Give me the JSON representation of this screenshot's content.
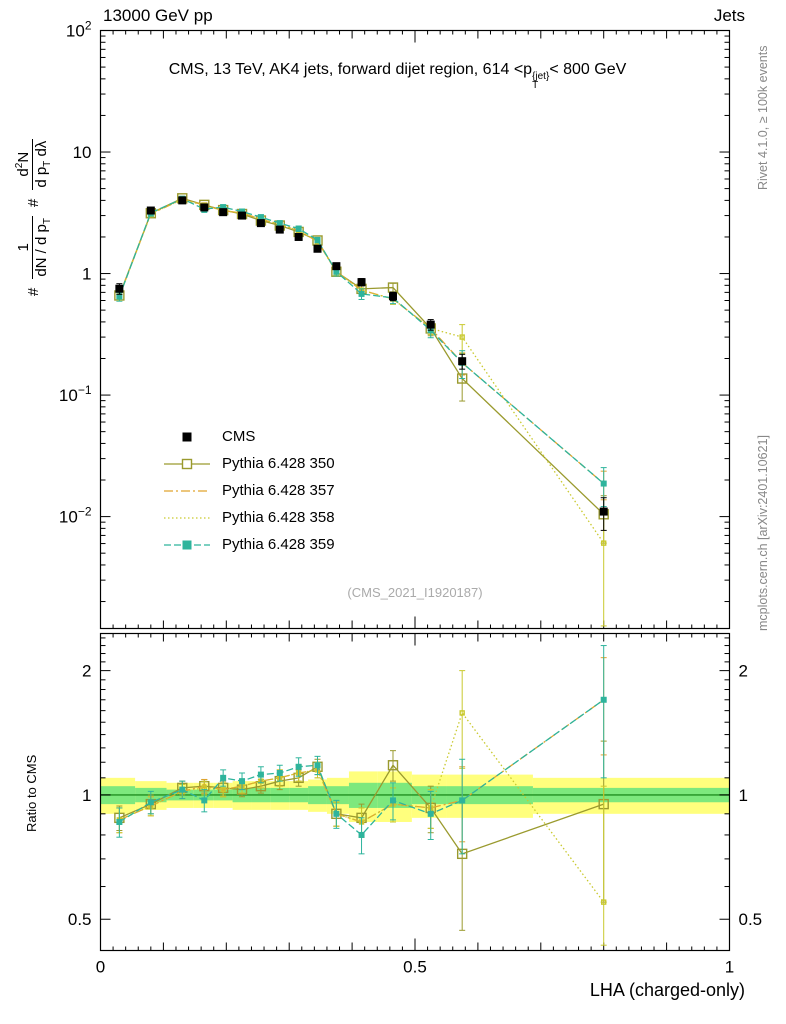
{
  "header": {
    "left": "13000 GeV pp",
    "right": "Jets"
  },
  "title": {
    "pre": "CMS, 13 TeV, AK4 jets, forward dijet region, 614 <p",
    "sup": "{jet}",
    "sub": "T",
    "post": "< 800 GeV"
  },
  "ylabel_main": {
    "hash1": "#",
    "f1_num": "1",
    "f1_den_pre": "dN / d p",
    "f1_den_sub": "T",
    "hash2": "#",
    "f2_num_pre": "d",
    "f2_num_sup": "2",
    "f2_num_post": "N",
    "f2_den_pre": "d p",
    "f2_den_sub": "T",
    "f2_den_post": " dλ"
  },
  "ratio": {
    "ylabel": "Ratio to CMS"
  },
  "watermark": "(CMS_2021_I1920187)",
  "right_margin": {
    "top": "Rivet 4.1.0, ≥ 100k events",
    "bottom": "mcplots.cern.ch [arXiv:2401.10621]"
  },
  "chart_data": {
    "type": "line",
    "title": "CMS, 13 TeV, AK4 jets, forward dijet region, 614 <pT{jet}< 800 GeV",
    "xlabel": "LHA (charged-only)",
    "ylabel": "1/(dN/dpT) d2N/(dpT dλ)",
    "xlim": [
      0,
      1
    ],
    "xticks": {
      "values": [
        0,
        0.5,
        1
      ],
      "labels": [
        "0",
        "0.5",
        "1"
      ]
    },
    "main_ylim_log": [
      0.0012,
      100
    ],
    "main_ytick_exponents": [
      2,
      1,
      0,
      -1,
      -2
    ],
    "ratio_ylim_log": [
      0.42,
      2.46
    ],
    "ratio_yticks": {
      "values": [
        0.5,
        1,
        2
      ],
      "labels": [
        "0.5",
        "1",
        "2"
      ]
    },
    "x": [
      0.03,
      0.08,
      0.13,
      0.165,
      0.195,
      0.225,
      0.255,
      0.285,
      0.315,
      0.345,
      0.375,
      0.415,
      0.465,
      0.525,
      0.575,
      0.8
    ],
    "cms": {
      "name": "CMS",
      "color": "#000000",
      "values": [
        0.75,
        3.3,
        4.0,
        3.5,
        3.2,
        3.0,
        2.6,
        2.3,
        2.0,
        1.6,
        1.15,
        0.85,
        0.65,
        0.38,
        0.19,
        0.011
      ],
      "err_rel": [
        0.1,
        0.05,
        0.04,
        0.04,
        0.04,
        0.04,
        0.04,
        0.04,
        0.05,
        0.05,
        0.06,
        0.07,
        0.08,
        0.1,
        0.14,
        0.3
      ]
    },
    "series": [
      {
        "name": "Pythia 6.428 350",
        "color": "#9a9a2e",
        "line": "solid",
        "marker": "open-square",
        "marker_size": 9,
        "legend_marker": "open-square",
        "ratio": [
          0.88,
          0.95,
          1.04,
          1.05,
          1.04,
          1.03,
          1.05,
          1.08,
          1.1,
          1.17,
          0.9,
          0.88,
          1.18,
          0.93,
          0.72,
          0.95
        ],
        "ratio_err": [
          0.06,
          0.05,
          0.04,
          0.04,
          0.04,
          0.04,
          0.04,
          0.05,
          0.05,
          0.05,
          0.06,
          0.07,
          0.1,
          0.12,
          0.25,
          0.4
        ]
      },
      {
        "name": "Pythia 6.428 357",
        "color": "#e0a32e",
        "line": "dashdot",
        "marker": "filled-square",
        "marker_size": 4,
        "legend_marker": "none",
        "ratio": [
          0.87,
          0.94,
          1.02,
          1.05,
          1.03,
          1.05,
          1.08,
          1.1,
          1.13,
          1.15,
          0.9,
          0.86,
          0.95,
          0.93,
          0.97,
          1.7
        ],
        "ratio_err": [
          0.06,
          0.05,
          0.04,
          0.04,
          0.04,
          0.04,
          0.04,
          0.05,
          0.05,
          0.05,
          0.06,
          0.07,
          0.09,
          0.1,
          0.2,
          0.45
        ]
      },
      {
        "name": "Pythia 6.428 358",
        "color": "#c9c92e",
        "line": "dotted",
        "marker": "open-square",
        "marker_size": 4,
        "legend_marker": "none",
        "ratio": [
          0.87,
          0.94,
          1.02,
          1.04,
          1.03,
          1.05,
          1.08,
          1.1,
          1.13,
          1.15,
          0.9,
          0.86,
          0.95,
          0.93,
          1.58,
          0.55
        ],
        "ratio_err": [
          0.06,
          0.05,
          0.04,
          0.04,
          0.04,
          0.04,
          0.04,
          0.05,
          0.05,
          0.05,
          0.06,
          0.07,
          0.09,
          0.1,
          0.42,
          0.5
        ]
      },
      {
        "name": "Pythia 6.428 359",
        "color": "#2eb49c",
        "line": "dashed",
        "marker": "filled-square",
        "marker_size": 6,
        "legend_marker": "filled-square",
        "ratio": [
          0.86,
          0.96,
          1.03,
          0.97,
          1.1,
          1.08,
          1.12,
          1.13,
          1.17,
          1.18,
          0.9,
          0.8,
          0.97,
          0.9,
          0.97,
          1.7
        ],
        "ratio_err": [
          0.07,
          0.06,
          0.05,
          0.06,
          0.05,
          0.05,
          0.05,
          0.05,
          0.06,
          0.06,
          0.07,
          0.08,
          0.1,
          0.12,
          0.25,
          0.6
        ]
      }
    ],
    "bands": {
      "yellow": {
        "color": "#ffff7d",
        "lo": [
          0.9,
          0.92,
          0.93,
          0.93,
          0.93,
          0.92,
          0.92,
          0.92,
          0.92,
          0.91,
          0.9,
          0.86,
          0.86,
          0.88,
          0.88,
          0.9
        ],
        "hi": [
          1.1,
          1.08,
          1.07,
          1.07,
          1.07,
          1.08,
          1.08,
          1.08,
          1.08,
          1.09,
          1.1,
          1.14,
          1.14,
          1.12,
          1.12,
          1.1
        ]
      },
      "green": {
        "color": "#7de87d",
        "lo": [
          0.95,
          0.96,
          0.97,
          0.97,
          0.97,
          0.96,
          0.96,
          0.96,
          0.96,
          0.95,
          0.95,
          0.93,
          0.93,
          0.95,
          0.95,
          0.96
        ],
        "hi": [
          1.05,
          1.04,
          1.03,
          1.03,
          1.03,
          1.04,
          1.04,
          1.04,
          1.04,
          1.05,
          1.05,
          1.07,
          1.07,
          1.05,
          1.05,
          1.04
        ]
      },
      "ref_line": {
        "value": 1,
        "color": "#2e9c2e"
      }
    }
  }
}
